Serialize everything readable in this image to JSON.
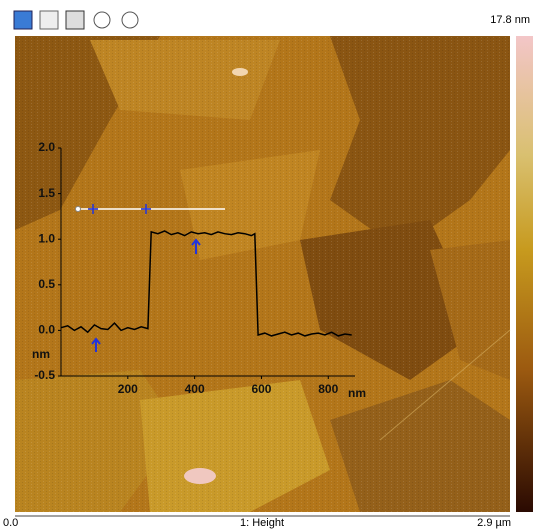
{
  "image": {
    "scale_max": "17.8 nm",
    "x_start": "0.0",
    "channel": "1: Height",
    "x_end": "2.9 µm"
  },
  "chart_data": {
    "type": "line",
    "color": "#000000",
    "x": [
      0,
      20,
      40,
      60,
      80,
      100,
      120,
      140,
      160,
      180,
      200,
      220,
      240,
      260,
      270,
      290,
      310,
      330,
      350,
      370,
      390,
      410,
      430,
      450,
      470,
      490,
      510,
      530,
      550,
      570,
      580,
      590,
      610,
      630,
      650,
      670,
      690,
      710,
      730,
      750,
      770,
      790,
      810,
      830,
      850,
      870
    ],
    "values": [
      0.03,
      0.05,
      0.0,
      0.04,
      -0.02,
      0.06,
      0.02,
      0.01,
      0.08,
      0.0,
      0.03,
      0.01,
      0.04,
      0.02,
      1.08,
      1.06,
      1.09,
      1.05,
      1.07,
      1.04,
      1.08,
      1.06,
      1.07,
      1.05,
      1.08,
      1.06,
      1.05,
      1.07,
      1.06,
      1.04,
      1.06,
      -0.05,
      -0.03,
      -0.06,
      -0.04,
      -0.02,
      -0.05,
      -0.03,
      -0.06,
      -0.04,
      -0.03,
      -0.05,
      -0.02,
      -0.06,
      -0.04,
      -0.05
    ],
    "xlim": [
      0,
      880
    ],
    "xticks": [
      200,
      400,
      600,
      800
    ],
    "ylim": [
      -0.5,
      2.0
    ],
    "yticks": [
      {
        "value": -0.5,
        "label": "-0.5"
      },
      {
        "value": 0,
        "label": "0.0"
      },
      0.5,
      {
        "value": 1,
        "label": "1.0"
      },
      1.5,
      {
        "value": 2,
        "label": "2.0"
      }
    ],
    "xlabel": "nm",
    "ylabel": "nm"
  }
}
